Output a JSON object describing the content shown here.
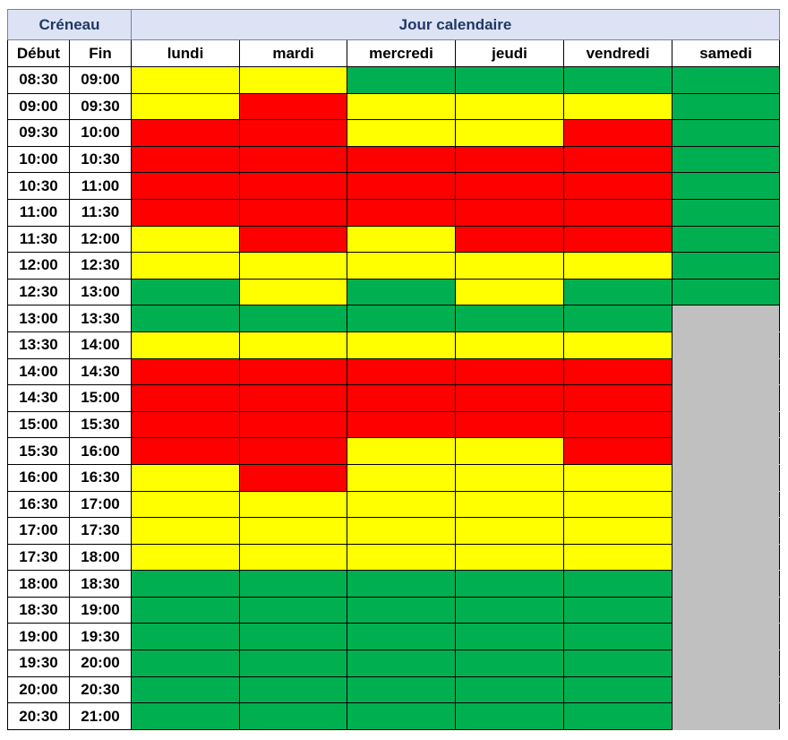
{
  "header": {
    "slot": "Créneau",
    "days": "Jour calendaire",
    "columns": [
      "Début",
      "Fin",
      "lundi",
      "mardi",
      "mercredi",
      "jeudi",
      "vendredi",
      "samedi"
    ]
  },
  "table": {
    "rows": [
      {
        "start": "08:30",
        "end": "09:00",
        "colors": [
          "#ffff00",
          "#ffff00",
          "#00b050",
          "#00b050",
          "#00b050",
          "#00b050"
        ]
      },
      {
        "start": "09:00",
        "end": "09:30",
        "colors": [
          "#ffff00",
          "#ff0000",
          "#ffff00",
          "#ffff00",
          "#ffff00",
          "#00b050"
        ]
      },
      {
        "start": "09:30",
        "end": "10:00",
        "colors": [
          "#ff0000",
          "#ff0000",
          "#ffff00",
          "#ffff00",
          "#ff0000",
          "#00b050"
        ]
      },
      {
        "start": "10:00",
        "end": "10:30",
        "colors": [
          "#ff0000",
          "#ff0000",
          "#ff0000",
          "#ff0000",
          "#ff0000",
          "#00b050"
        ]
      },
      {
        "start": "10:30",
        "end": "11:00",
        "colors": [
          "#ff0000",
          "#ff0000",
          "#ff0000",
          "#ff0000",
          "#ff0000",
          "#00b050"
        ]
      },
      {
        "start": "11:00",
        "end": "11:30",
        "colors": [
          "#ff0000",
          "#ff0000",
          "#ff0000",
          "#ff0000",
          "#ff0000",
          "#00b050"
        ]
      },
      {
        "start": "11:30",
        "end": "12:00",
        "colors": [
          "#ffff00",
          "#ff0000",
          "#ffff00",
          "#ff0000",
          "#ff0000",
          "#00b050"
        ]
      },
      {
        "start": "12:00",
        "end": "12:30",
        "colors": [
          "#ffff00",
          "#ffff00",
          "#ffff00",
          "#ffff00",
          "#ffff00",
          "#00b050"
        ]
      },
      {
        "start": "12:30",
        "end": "13:00",
        "colors": [
          "#00b050",
          "#ffff00",
          "#00b050",
          "#ffff00",
          "#00b050",
          "#00b050"
        ]
      },
      {
        "start": "13:00",
        "end": "13:30",
        "colors": [
          "#00b050",
          "#00b050",
          "#00b050",
          "#00b050",
          "#00b050",
          "#c0c0c0"
        ]
      },
      {
        "start": "13:30",
        "end": "14:00",
        "colors": [
          "#ffff00",
          "#ffff00",
          "#ffff00",
          "#ffff00",
          "#ffff00",
          "#c0c0c0"
        ]
      },
      {
        "start": "14:00",
        "end": "14:30",
        "colors": [
          "#ff0000",
          "#ff0000",
          "#ff0000",
          "#ff0000",
          "#ff0000",
          "#c0c0c0"
        ]
      },
      {
        "start": "14:30",
        "end": "15:00",
        "colors": [
          "#ff0000",
          "#ff0000",
          "#ff0000",
          "#ff0000",
          "#ff0000",
          "#c0c0c0"
        ]
      },
      {
        "start": "15:00",
        "end": "15:30",
        "colors": [
          "#ff0000",
          "#ff0000",
          "#ff0000",
          "#ff0000",
          "#ff0000",
          "#c0c0c0"
        ]
      },
      {
        "start": "15:30",
        "end": "16:00",
        "colors": [
          "#ff0000",
          "#ff0000",
          "#ffff00",
          "#ffff00",
          "#ff0000",
          "#c0c0c0"
        ]
      },
      {
        "start": "16:00",
        "end": "16:30",
        "colors": [
          "#ffff00",
          "#ff0000",
          "#ffff00",
          "#ffff00",
          "#ffff00",
          "#c0c0c0"
        ]
      },
      {
        "start": "16:30",
        "end": "17:00",
        "colors": [
          "#ffff00",
          "#ffff00",
          "#ffff00",
          "#ffff00",
          "#ffff00",
          "#c0c0c0"
        ]
      },
      {
        "start": "17:00",
        "end": "17:30",
        "colors": [
          "#ffff00",
          "#ffff00",
          "#ffff00",
          "#ffff00",
          "#ffff00",
          "#c0c0c0"
        ]
      },
      {
        "start": "17:30",
        "end": "18:00",
        "colors": [
          "#ffff00",
          "#ffff00",
          "#ffff00",
          "#ffff00",
          "#ffff00",
          "#c0c0c0"
        ]
      },
      {
        "start": "18:00",
        "end": "18:30",
        "colors": [
          "#00b050",
          "#00b050",
          "#00b050",
          "#00b050",
          "#00b050",
          "#c0c0c0"
        ]
      },
      {
        "start": "18:30",
        "end": "19:00",
        "colors": [
          "#00b050",
          "#00b050",
          "#00b050",
          "#00b050",
          "#00b050",
          "#c0c0c0"
        ]
      },
      {
        "start": "19:00",
        "end": "19:30",
        "colors": [
          "#00b050",
          "#00b050",
          "#00b050",
          "#00b050",
          "#00b050",
          "#c0c0c0"
        ]
      },
      {
        "start": "19:30",
        "end": "20:00",
        "colors": [
          "#00b050",
          "#00b050",
          "#00b050",
          "#00b050",
          "#00b050",
          "#c0c0c0"
        ]
      },
      {
        "start": "20:00",
        "end": "20:30",
        "colors": [
          "#00b050",
          "#00b050",
          "#00b050",
          "#00b050",
          "#00b050",
          "#c0c0c0"
        ]
      },
      {
        "start": "20:30",
        "end": "21:00",
        "colors": [
          "#00b050",
          "#00b050",
          "#00b050",
          "#00b050",
          "#00b050",
          "#c0c0c0"
        ]
      }
    ]
  }
}
